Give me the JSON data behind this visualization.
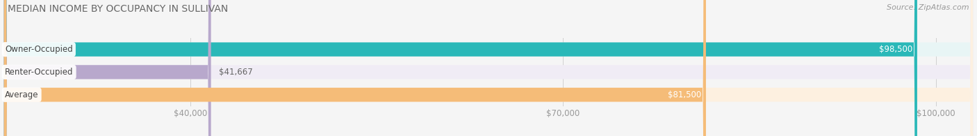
{
  "title": "MEDIAN INCOME BY OCCUPANCY IN SULLIVAN",
  "source": "Source: ZipAtlas.com",
  "categories": [
    "Owner-Occupied",
    "Renter-Occupied",
    "Average"
  ],
  "values": [
    98500,
    41667,
    81500
  ],
  "value_labels": [
    "$98,500",
    "$41,667",
    "$81,500"
  ],
  "bar_colors": [
    "#2ab8b8",
    "#b8a8cc",
    "#f5bc78"
  ],
  "bar_bg_colors": [
    "#e8f5f5",
    "#f0ecf5",
    "#fdf0e0"
  ],
  "xmin": 25000,
  "xmax": 103000,
  "xticks": [
    40000,
    70000,
    100000
  ],
  "xtick_labels": [
    "$40,000",
    "$70,000",
    "$100,000"
  ],
  "title_fontsize": 10,
  "source_fontsize": 8,
  "cat_label_fontsize": 8.5,
  "val_label_fontsize": 8.5,
  "tick_fontsize": 8.5,
  "background_color": "#f5f5f5",
  "bar_height": 0.62,
  "bar_gap": 0.18
}
